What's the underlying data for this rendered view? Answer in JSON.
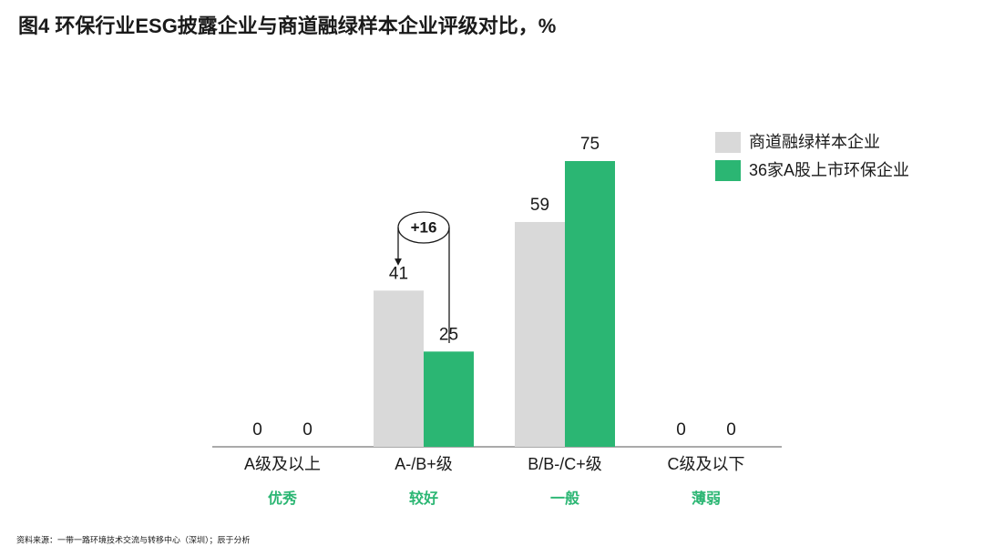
{
  "chart_data": {
    "type": "bar",
    "title": "图4  环保行业ESG披露企业与商道融绿样本企业评级对比，%",
    "categories": [
      "A级及以上",
      "A-/B+级",
      "B/B-/C+级",
      "C级及以下"
    ],
    "category_notes": [
      "优秀",
      "较好",
      "一般",
      "薄弱"
    ],
    "series": [
      {
        "name": "商道融绿样本企业",
        "color": "#d9d9d9",
        "values": [
          0,
          41,
          59,
          0
        ]
      },
      {
        "name": "36家A股上市环保企业",
        "color": "#2bb673",
        "values": [
          0,
          25,
          75,
          0
        ]
      }
    ],
    "annotation": "+16",
    "note_color": "#2bb673",
    "source": "资料来源：一带一路环境技术交流与转移中心（深圳）；辰于分析"
  }
}
